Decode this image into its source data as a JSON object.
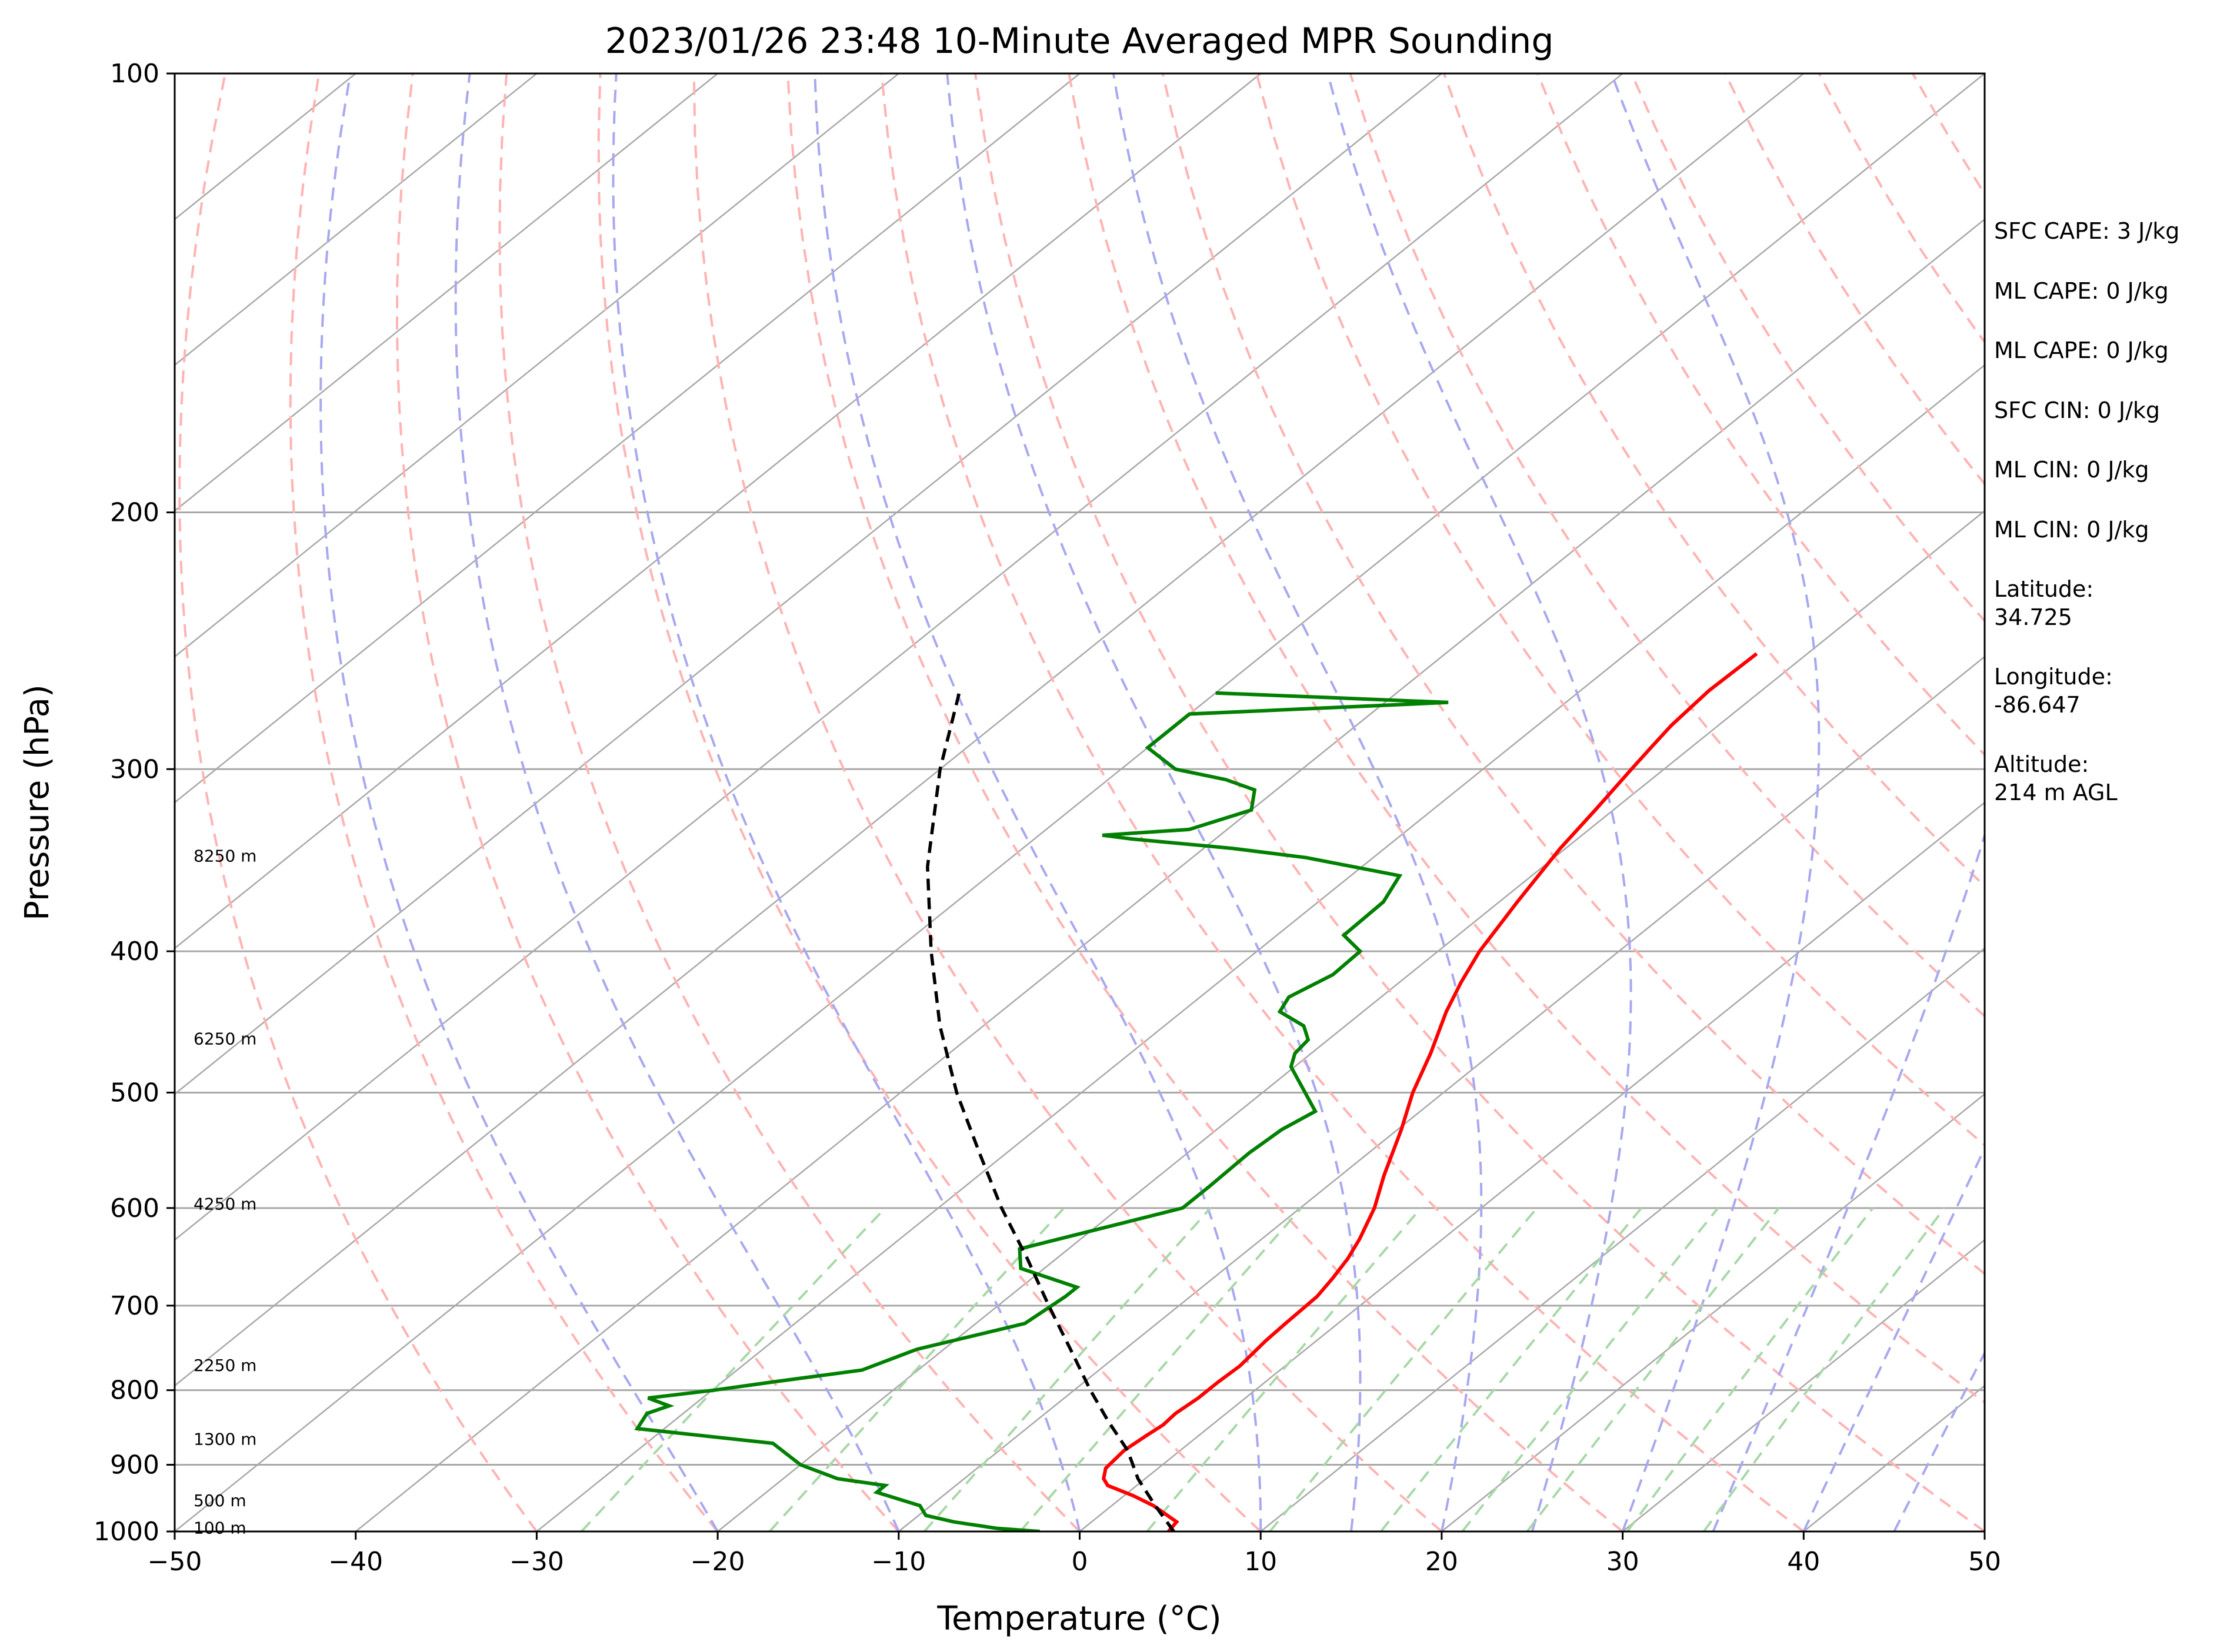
{
  "chart_data": {
    "type": "skew-t",
    "title": "2023/01/26 23:48 10-Minute Averaged MPR Sounding",
    "xlabel": "Temperature (°C)",
    "ylabel": "Pressure (hPa)",
    "xlim": [
      -50,
      50
    ],
    "ylim": [
      1000,
      100
    ],
    "y_scale": "log",
    "x_ticks": [
      "−50",
      "−40",
      "−30",
      "−20",
      "−10",
      "0",
      "10",
      "20",
      "30",
      "40",
      "50"
    ],
    "y_ticks": [
      "1000",
      "900",
      "800",
      "700",
      "600",
      "500",
      "400",
      "300",
      "200",
      "100"
    ],
    "isobars": [
      1000,
      900,
      800,
      700,
      600,
      500,
      400,
      300,
      200
    ],
    "isotherms": [
      -180,
      -170,
      -160,
      -150,
      -140,
      -130,
      -120,
      -110,
      -100,
      -90,
      -80,
      -70,
      -60,
      -50,
      -40,
      -30,
      -20,
      -10,
      0,
      10,
      20,
      30,
      40,
      50
    ],
    "dry_adiabats_theta_c": [
      -30,
      -20,
      -10,
      0,
      10,
      20,
      30,
      40,
      50,
      60,
      70,
      80,
      90,
      100,
      110,
      120,
      130,
      140,
      150,
      160
    ],
    "moist_adiabats_t1000_c": [
      -20,
      -10,
      0,
      10,
      15,
      20,
      25,
      30,
      35,
      40,
      45
    ],
    "mixing_ratios_gkg": [
      0.4,
      1,
      2,
      3,
      5,
      8,
      12,
      16,
      20,
      28,
      36
    ],
    "colors": {
      "temperature": "#ff0000",
      "dewpoint": "#008000",
      "parcel": "#000000",
      "isotherm": "#a8a8a8",
      "isobar": "#a8a8a8",
      "dry_adiabat": "#ffb3b3",
      "moist_adiabat": "#a8a8f0",
      "mixing_ratio": "#a8d8a8"
    },
    "temperature": [
      [
        1000,
        4.9
      ],
      [
        985,
        4.7
      ],
      [
        960,
        2.3
      ],
      [
        945,
        0.5
      ],
      [
        930,
        -1.6
      ],
      [
        920,
        -2.3
      ],
      [
        905,
        -2.9
      ],
      [
        880,
        -3.1
      ],
      [
        860,
        -2.9
      ],
      [
        845,
        -2.7
      ],
      [
        830,
        -2.8
      ],
      [
        810,
        -2.6
      ],
      [
        790,
        -2.6
      ],
      [
        770,
        -2.5
      ],
      [
        740,
        -2.8
      ],
      [
        720,
        -2.9
      ],
      [
        690,
        -3.0
      ],
      [
        670,
        -3.4
      ],
      [
        650,
        -3.9
      ],
      [
        630,
        -4.6
      ],
      [
        600,
        -5.9
      ],
      [
        570,
        -7.6
      ],
      [
        530,
        -9.8
      ],
      [
        500,
        -11.7
      ],
      [
        470,
        -13.4
      ],
      [
        440,
        -15.4
      ],
      [
        420,
        -16.6
      ],
      [
        400,
        -17.7
      ],
      [
        370,
        -19.0
      ],
      [
        340,
        -20.3
      ],
      [
        320,
        -21.0
      ],
      [
        300,
        -21.8
      ],
      [
        290,
        -22.2
      ],
      [
        280,
        -22.6
      ],
      [
        265,
        -22.9
      ],
      [
        250,
        -22.8
      ]
    ],
    "dewpoint": [
      [
        1000,
        -2.2
      ],
      [
        995,
        -4.8
      ],
      [
        985,
        -7.6
      ],
      [
        975,
        -9.6
      ],
      [
        960,
        -10.6
      ],
      [
        940,
        -13.9
      ],
      [
        930,
        -13.9
      ],
      [
        920,
        -17.0
      ],
      [
        900,
        -20.0
      ],
      [
        870,
        -23.0
      ],
      [
        850,
        -31.5
      ],
      [
        830,
        -32.0
      ],
      [
        820,
        -31.3
      ],
      [
        810,
        -33.0
      ],
      [
        800,
        -29.9
      ],
      [
        790,
        -27.3
      ],
      [
        775,
        -23.1
      ],
      [
        750,
        -21.5
      ],
      [
        720,
        -17.3
      ],
      [
        690,
        -16.9
      ],
      [
        680,
        -16.9
      ],
      [
        660,
        -21.3
      ],
      [
        640,
        -22.7
      ],
      [
        600,
        -16.5
      ],
      [
        580,
        -16.5
      ],
      [
        550,
        -16.6
      ],
      [
        530,
        -16.4
      ],
      [
        515,
        -15.8
      ],
      [
        480,
        -20.2
      ],
      [
        470,
        -20.9
      ],
      [
        460,
        -21.1
      ],
      [
        450,
        -22.3
      ],
      [
        440,
        -24.6
      ],
      [
        430,
        -25.1
      ],
      [
        415,
        -24.2
      ],
      [
        400,
        -24.3
      ],
      [
        390,
        -26.3
      ],
      [
        370,
        -26.4
      ],
      [
        355,
        -27.3
      ],
      [
        345,
        -33.7
      ],
      [
        340,
        -38.4
      ],
      [
        335,
        -44.6
      ],
      [
        333,
        -46.5
      ],
      [
        330,
        -42.1
      ],
      [
        320,
        -40.0
      ],
      [
        310,
        -41.2
      ],
      [
        305,
        -43.5
      ],
      [
        300,
        -47.0
      ],
      [
        290,
        -50.0
      ],
      [
        275,
        -50.0
      ],
      [
        270,
        -36.5
      ],
      [
        266,
        -50.0
      ]
    ],
    "parcel": [
      [
        1000,
        5.2
      ],
      [
        960,
        2.4
      ],
      [
        920,
        -0.4
      ],
      [
        880,
        -2.9
      ],
      [
        840,
        -6.0
      ],
      [
        800,
        -9.1
      ],
      [
        750,
        -13.0
      ],
      [
        700,
        -17.2
      ],
      [
        650,
        -21.6
      ],
      [
        600,
        -26.5
      ],
      [
        550,
        -31.5
      ],
      [
        500,
        -36.9
      ],
      [
        450,
        -42.4
      ],
      [
        400,
        -48.0
      ],
      [
        350,
        -54.0
      ],
      [
        300,
        -60.0
      ],
      [
        265,
        -64.3
      ]
    ],
    "height_labels": [
      {
        "label": "100 m",
        "p": 994
      },
      {
        "label": "500 m",
        "p": 952
      },
      {
        "label": "1300 m",
        "p": 864
      },
      {
        "label": "2250 m",
        "p": 769
      },
      {
        "label": "4250 m",
        "p": 596
      },
      {
        "label": "6250 m",
        "p": 459
      },
      {
        "label": "8250 m",
        "p": 344
      }
    ]
  },
  "side_panel": {
    "sfc_cape": "SFC CAPE: 3 J/kg",
    "ml_cape_1": "ML CAPE: 0 J/kg",
    "ml_cape_2": "ML CAPE: 0 J/kg",
    "sfc_cin": "SFC CIN: 0 J/kg",
    "ml_cin_1": "ML CIN: 0 J/kg",
    "ml_cin_2": "ML CIN: 0 J/kg",
    "latitude": "Latitude:\n34.725",
    "longitude": "Longitude:\n-86.647",
    "altitude": "Altitude:\n214 m AGL"
  }
}
